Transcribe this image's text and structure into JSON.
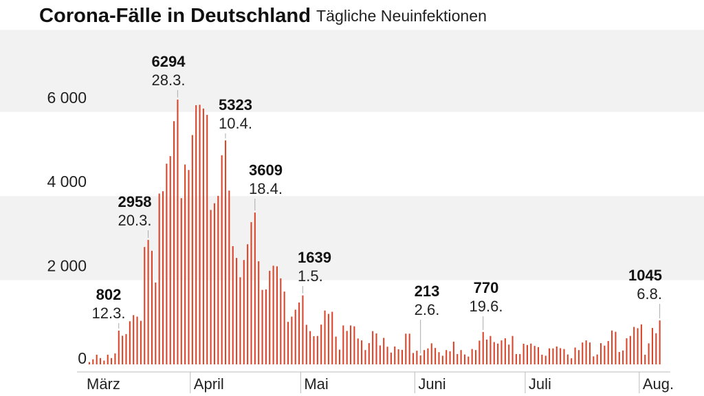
{
  "chart_data": {
    "type": "bar",
    "title": "Corona-Fälle in Deutschland",
    "subtitle": "Tägliche Neuinfektionen",
    "xlabel": "",
    "ylabel": "",
    "ylim": [
      0,
      7950
    ],
    "yticks": [
      {
        "value": 0,
        "label": "0"
      },
      {
        "value": 2000,
        "label": "2 000"
      },
      {
        "value": 4000,
        "label": "4 000"
      },
      {
        "value": 6000,
        "label": "6 000"
      }
    ],
    "bands": [
      [
        2000,
        4000
      ],
      [
        6000,
        7950
      ]
    ],
    "xticks": [
      {
        "date": "1.3.",
        "label": "März"
      },
      {
        "date": "1.4.",
        "label": "April"
      },
      {
        "date": "1.5.",
        "label": "Mai"
      },
      {
        "date": "1.6.",
        "label": "Juni"
      },
      {
        "date": "1.7.",
        "label": "Juli"
      },
      {
        "date": "1.8.",
        "label": "Aug."
      }
    ],
    "bar_color": "#d9462b",
    "band_color": "#f2f2f2",
    "dates": [
      "4.3.",
      "5.3.",
      "6.3.",
      "7.3.",
      "8.3.",
      "9.3.",
      "10.3.",
      "11.3.",
      "12.3.",
      "13.3.",
      "14.3.",
      "15.3.",
      "16.3.",
      "17.3.",
      "18.3.",
      "19.3.",
      "20.3.",
      "21.3.",
      "22.3.",
      "23.3.",
      "24.3.",
      "25.3.",
      "26.3.",
      "27.3.",
      "28.3.",
      "29.3.",
      "30.3.",
      "31.3.",
      "1.4.",
      "2.4.",
      "3.4.",
      "4.4.",
      "5.4.",
      "6.4.",
      "7.4.",
      "8.4.",
      "9.4.",
      "10.4.",
      "11.4.",
      "12.4.",
      "13.4.",
      "14.4.",
      "15.4.",
      "16.4.",
      "17.4.",
      "18.4.",
      "19.4.",
      "20.4.",
      "21.4.",
      "22.4.",
      "23.4.",
      "24.4.",
      "25.4.",
      "26.4.",
      "27.4.",
      "28.4.",
      "29.4.",
      "30.4.",
      "1.5.",
      "2.5.",
      "3.5.",
      "4.5.",
      "5.5.",
      "6.5.",
      "7.5.",
      "8.5.",
      "9.5.",
      "10.5.",
      "11.5.",
      "12.5.",
      "13.5.",
      "14.5.",
      "15.5.",
      "16.5.",
      "17.5.",
      "18.5.",
      "19.5.",
      "20.5.",
      "21.5.",
      "22.5.",
      "23.5.",
      "24.5.",
      "25.5.",
      "26.5.",
      "27.5.",
      "28.5.",
      "29.5.",
      "30.5.",
      "31.5.",
      "1.6.",
      "2.6.",
      "3.6.",
      "4.6.",
      "5.6.",
      "6.6.",
      "7.6.",
      "8.6.",
      "9.6.",
      "10.6.",
      "11.6.",
      "12.6.",
      "13.6.",
      "14.6.",
      "15.6.",
      "16.6.",
      "17.6.",
      "18.6.",
      "19.6.",
      "20.6.",
      "21.6.",
      "22.6.",
      "23.6.",
      "24.6.",
      "25.6.",
      "26.6.",
      "27.6.",
      "28.6.",
      "29.6.",
      "30.6.",
      "1.7.",
      "2.7.",
      "3.7.",
      "4.7.",
      "5.7.",
      "6.7.",
      "7.7.",
      "8.7.",
      "9.7.",
      "10.7.",
      "11.7.",
      "12.7.",
      "13.7.",
      "14.7.",
      "15.7.",
      "16.7.",
      "17.7.",
      "18.7.",
      "19.7.",
      "20.7.",
      "21.7.",
      "22.7.",
      "23.7.",
      "24.7.",
      "25.7.",
      "26.7.",
      "27.7.",
      "28.7.",
      "29.7.",
      "30.7.",
      "31.7.",
      "1.8.",
      "2.8.",
      "3.8.",
      "4.8.",
      "5.8.",
      "6.8."
    ],
    "values": [
      55,
      120,
      230,
      150,
      90,
      230,
      150,
      260,
      802,
      680,
      720,
      1025,
      1170,
      1135,
      1035,
      2790,
      2958,
      2700,
      1945,
      4060,
      4115,
      4770,
      4950,
      5780,
      6294,
      3950,
      4750,
      4620,
      5450,
      6160,
      6170,
      6080,
      5930,
      3670,
      3830,
      4005,
      4970,
      5323,
      4130,
      2810,
      2530,
      2070,
      2480,
      2855,
      3380,
      3609,
      2450,
      1770,
      1780,
      2225,
      2345,
      2330,
      2045,
      1730,
      1010,
      1135,
      1300,
      1470,
      1639,
      940,
      790,
      670,
      675,
      945,
      1280,
      1200,
      1250,
      660,
      350,
      925,
      795,
      925,
      905,
      615,
      570,
      340,
      505,
      790,
      735,
      450,
      630,
      420,
      280,
      425,
      360,
      345,
      730,
      730,
      270,
      325,
      213,
      340,
      380,
      500,
      390,
      290,
      205,
      340,
      310,
      540,
      245,
      340,
      235,
      185,
      365,
      340,
      565,
      770,
      590,
      675,
      530,
      495,
      570,
      620,
      470,
      675,
      245,
      245,
      490,
      460,
      495,
      440,
      410,
      230,
      205,
      380,
      380,
      425,
      385,
      365,
      235,
      145,
      400,
      340,
      520,
      570,
      520,
      190,
      235,
      505,
      445,
      555,
      805,
      775,
      295,
      330,
      620,
      675,
      890,
      860,
      950,
      230,
      500,
      865,
      740,
      1045
    ],
    "annotations": [
      {
        "date": "12.3.",
        "value": "802"
      },
      {
        "date": "20.3.",
        "value": "2958"
      },
      {
        "date": "28.3.",
        "value": "6294"
      },
      {
        "date": "10.4.",
        "value": "5323"
      },
      {
        "date": "18.4.",
        "value": "3609"
      },
      {
        "date": "1.5.",
        "value": "1639"
      },
      {
        "date": "2.6.",
        "value": "213"
      },
      {
        "date": "19.6.",
        "value": "770"
      },
      {
        "date": "6.8.",
        "value": "1045"
      }
    ]
  }
}
